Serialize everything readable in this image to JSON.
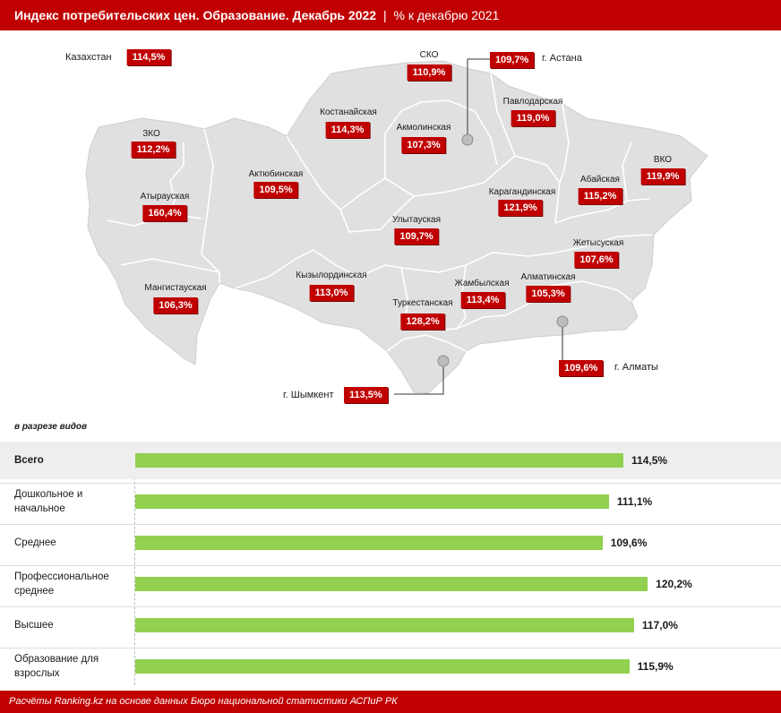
{
  "header": {
    "title": "Индекс потребительских цен. Образование. Декабрь 2022",
    "separator": "|",
    "subtitle": "% к декабрю 2021"
  },
  "map": {
    "kazakhstan": {
      "name": "Казахстан",
      "value": "114,5%"
    },
    "regions": {
      "zko": {
        "name": "ЗКО",
        "value": "112,2%"
      },
      "atyrau": {
        "name": "Атырауская",
        "value": "160,4%"
      },
      "mangystau": {
        "name": "Мангистауская",
        "value": "106,3%"
      },
      "aktobe": {
        "name": "Актюбинская",
        "value": "109,5%"
      },
      "kostanay": {
        "name": "Костанайская",
        "value": "114,3%"
      },
      "sko": {
        "name": "СКО",
        "value": "110,9%"
      },
      "akmola": {
        "name": "Акмолинская",
        "value": "107,3%"
      },
      "pavlodar": {
        "name": "Павлодарская",
        "value": "119,0%"
      },
      "vko": {
        "name": "ВКО",
        "value": "119,9%"
      },
      "abay": {
        "name": "Абайская",
        "value": "115,2%"
      },
      "karaganda": {
        "name": "Карагандинская",
        "value": "121,9%"
      },
      "ulytau": {
        "name": "Улытауская",
        "value": "109,7%"
      },
      "zhetysu": {
        "name": "Жетысуская",
        "value": "107,6%"
      },
      "kyzylorda": {
        "name": "Кызылординская",
        "value": "113,0%"
      },
      "zhambyl": {
        "name": "Жамбылская",
        "value": "113,4%"
      },
      "almaty_obl": {
        "name": "Алматинская",
        "value": "105,3%"
      },
      "turkestan": {
        "name": "Туркестанская",
        "value": "128,2%"
      }
    },
    "cities": {
      "astana": {
        "name": "г. Астана",
        "value": "109,7%"
      },
      "almaty": {
        "name": "г. Алматы",
        "value": "109,6%"
      },
      "shymkent": {
        "name": "г. Шымкент",
        "value": "113,5%"
      }
    },
    "colors": {
      "badge": "#c00000",
      "land": "#e0e0e0",
      "border": "#ffffff",
      "marker": "#bdbdbd"
    }
  },
  "section_label": "в разрезе видов",
  "chart_data": {
    "type": "bar",
    "orientation": "horizontal",
    "categories": [
      "Всего",
      "Дошкольное и начальное",
      "Среднее",
      "Профессиональное среднее",
      "Высшее",
      "Образование для взрослых"
    ],
    "values": [
      114.5,
      111.1,
      109.6,
      120.2,
      117.0,
      115.9
    ],
    "value_labels": [
      "114,5%",
      "111,1%",
      "109,6%",
      "120,2%",
      "117,0%",
      "115,9%"
    ],
    "xlim": [
      0,
      125
    ],
    "bar_color": "#92d050",
    "highlight_first_row": true
  },
  "footer": {
    "text": "Расчёты Ranking.kz на основе данных Бюро национальной статистики АСПиР РК"
  }
}
